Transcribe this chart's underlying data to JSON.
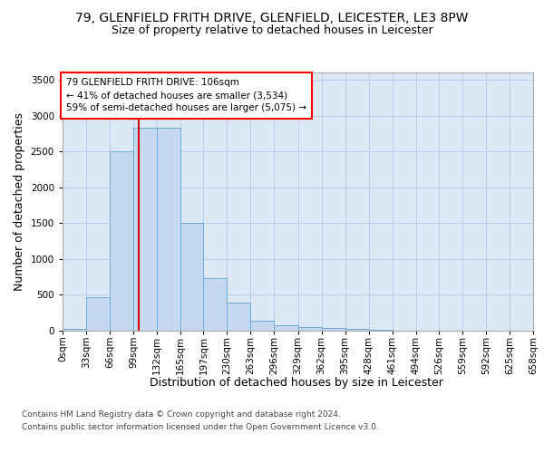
{
  "title_line1": "79, GLENFIELD FRITH DRIVE, GLENFIELD, LEICESTER, LE3 8PW",
  "title_line2": "Size of property relative to detached houses in Leicester",
  "xlabel": "Distribution of detached houses by size in Leicester",
  "ylabel": "Number of detached properties",
  "annotation_line1": "79 GLENFIELD FRITH DRIVE: 106sqm",
  "annotation_line2": "← 41% of detached houses are smaller (3,534)",
  "annotation_line3": "59% of semi-detached houses are larger (5,075) →",
  "bin_edges": [
    0,
    33,
    66,
    99,
    132,
    165,
    197,
    230,
    263,
    296,
    329,
    362,
    395,
    428,
    461,
    494,
    526,
    559,
    592,
    625,
    658
  ],
  "bar_values": [
    30,
    470,
    2500,
    2830,
    2830,
    1500,
    730,
    390,
    145,
    75,
    50,
    40,
    30,
    10,
    5,
    3,
    2,
    1,
    1,
    1
  ],
  "bar_color": "#c5d8f0",
  "bar_edge_color": "#6aaad4",
  "vline_color": "#cc0000",
  "vline_x": 106,
  "fig_background_color": "#ffffff",
  "plot_background_color": "#dce9f5",
  "grid_color": "#b8cfe8",
  "ylim": [
    0,
    3600
  ],
  "yticks": [
    0,
    500,
    1000,
    1500,
    2000,
    2500,
    3000,
    3500
  ],
  "footer_line1": "Contains HM Land Registry data © Crown copyright and database right 2024.",
  "footer_line2": "Contains public sector information licensed under the Open Government Licence v3.0.",
  "title_fontsize": 10,
  "subtitle_fontsize": 9,
  "axis_label_fontsize": 9,
  "tick_fontsize": 7.5,
  "annotation_fontsize": 7.5,
  "footer_fontsize": 6.5
}
